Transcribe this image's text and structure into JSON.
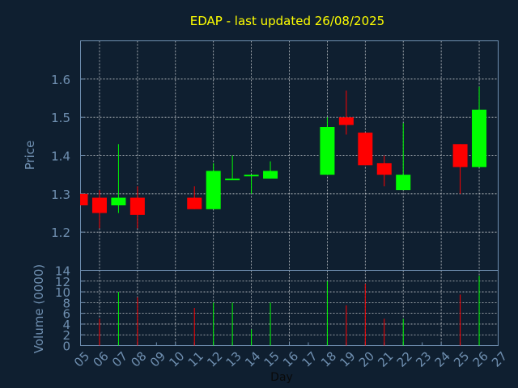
{
  "chart_data": {
    "type": "candlestick",
    "title": "EDAP - last updated 26/08/2025",
    "xlabel": "Day",
    "price_ylabel": "Price",
    "volume_ylabel": "Volume (0000)",
    "price_ylim": [
      1.1,
      1.7
    ],
    "price_yticks": [
      "1.2",
      "1.3",
      "1.4",
      "1.5",
      "1.6"
    ],
    "volume_ylim": [
      0,
      14
    ],
    "volume_yticks": [
      "0",
      "2",
      "4",
      "6",
      "8",
      "10",
      "12",
      "14"
    ],
    "x_ticks": [
      "05",
      "06",
      "07",
      "08",
      "09",
      "10",
      "11",
      "12",
      "13",
      "14",
      "15",
      "16",
      "17",
      "18",
      "19",
      "20",
      "21",
      "22",
      "23",
      "24",
      "25",
      "26",
      "27"
    ],
    "grid": true,
    "colors": {
      "up": "#00ff00",
      "down": "#ff0000",
      "axis": "#6f8fb0",
      "title": "#ffff00",
      "grid": "#ffffff",
      "background": "#0f1f30"
    },
    "candles": [
      {
        "day": "05",
        "open": 1.3,
        "high": 1.3,
        "low": 1.27,
        "close": 1.27,
        "volume": 0
      },
      {
        "day": "06",
        "open": 1.29,
        "high": 1.31,
        "low": 1.21,
        "close": 1.25,
        "volume": 5
      },
      {
        "day": "07",
        "open": 1.27,
        "high": 1.43,
        "low": 1.25,
        "close": 1.29,
        "volume": 10
      },
      {
        "day": "08",
        "open": 1.29,
        "high": 1.32,
        "low": 1.21,
        "close": 1.245,
        "volume": 9
      },
      {
        "day": "11",
        "open": 1.29,
        "high": 1.32,
        "low": 1.26,
        "close": 1.26,
        "volume": 7
      },
      {
        "day": "12",
        "open": 1.26,
        "high": 1.38,
        "low": 1.26,
        "close": 1.36,
        "volume": 8
      },
      {
        "day": "13",
        "open": 1.34,
        "high": 1.4,
        "low": 1.34,
        "close": 1.34,
        "volume": 8
      },
      {
        "day": "14",
        "open": 1.35,
        "high": 1.35,
        "low": 1.3,
        "close": 1.35,
        "volume": 3
      },
      {
        "day": "15",
        "open": 1.34,
        "high": 1.385,
        "low": 1.34,
        "close": 1.36,
        "volume": 8
      },
      {
        "day": "18",
        "open": 1.35,
        "high": 1.5,
        "low": 1.35,
        "close": 1.475,
        "volume": 12
      },
      {
        "day": "19",
        "open": 1.5,
        "high": 1.57,
        "low": 1.455,
        "close": 1.48,
        "volume": 7.5
      },
      {
        "day": "20",
        "open": 1.46,
        "high": 1.46,
        "low": 1.375,
        "close": 1.375,
        "volume": 11.5
      },
      {
        "day": "21",
        "open": 1.38,
        "high": 1.4,
        "low": 1.32,
        "close": 1.35,
        "volume": 5
      },
      {
        "day": "22",
        "open": 1.31,
        "high": 1.485,
        "low": 1.31,
        "close": 1.35,
        "volume": 5
      },
      {
        "day": "25",
        "open": 1.43,
        "high": 1.43,
        "low": 1.3,
        "close": 1.37,
        "volume": 9.5
      },
      {
        "day": "26",
        "open": 1.37,
        "high": 1.58,
        "low": 1.37,
        "close": 1.52,
        "volume": 13
      }
    ]
  }
}
